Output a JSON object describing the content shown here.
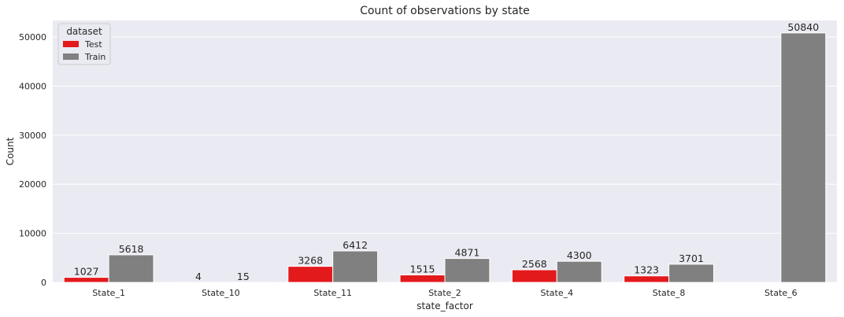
{
  "chart_data": {
    "type": "bar",
    "title": "Count of observations by state",
    "xlabel": "state_factor",
    "ylabel": "Count",
    "categories": [
      "State_1",
      "State_10",
      "State_11",
      "State_2",
      "State_4",
      "State_8",
      "State_6"
    ],
    "series": [
      {
        "name": "Test",
        "color": "#e31a1c",
        "values": [
          1027,
          4,
          3268,
          1515,
          2568,
          1323,
          null
        ]
      },
      {
        "name": "Train",
        "color": "#808080",
        "values": [
          5618,
          15,
          6412,
          4871,
          4300,
          3701,
          50840
        ]
      }
    ],
    "data_labels": [
      [
        "1027",
        "4",
        "3268",
        "1515",
        "2568",
        "1323",
        ""
      ],
      [
        "5618",
        "15",
        "6412",
        "4871",
        "4300",
        "3701",
        "50840"
      ]
    ],
    "yticks": [
      0,
      10000,
      20000,
      30000,
      40000,
      50000
    ],
    "ytick_labels": [
      "0",
      "10000",
      "20000",
      "30000",
      "40000",
      "50000"
    ],
    "ylim": [
      0,
      53382
    ],
    "grid": true,
    "legend": {
      "title": "dataset",
      "position": "top-left"
    },
    "colors": {
      "background": "#eaeaf2",
      "grid": "#ffffff"
    }
  }
}
